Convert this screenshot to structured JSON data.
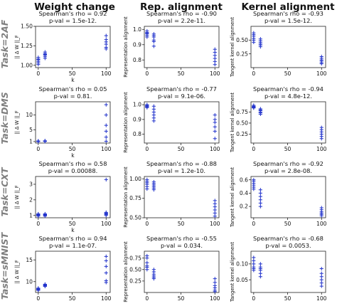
{
  "column_titles": [
    "Weight change",
    "Rep. alignment",
    "Kernel alignment"
  ],
  "row_titles": [
    "Task=2AF",
    "Task=DMS",
    "Task=CXT",
    "Task=sMNIST"
  ],
  "style": {
    "marker_color": "#2233cc",
    "marker": "+"
  },
  "chart_data": [
    {
      "type": "scatter",
      "row": 0,
      "col": 0,
      "stat_lines": [
        "Spearman's rho = 0.92",
        "p-val = 1.5e-12."
      ],
      "xlabel": "k",
      "ylabel": "|| Δ W ||_F",
      "xlim": [
        -4,
        106
      ],
      "ylim": [
        0.97,
        1.5
      ],
      "xticks": [
        0,
        50,
        100
      ],
      "xticklabels": [
        "0",
        "50",
        "100"
      ],
      "yticks": [
        1.0,
        1.25,
        1.5
      ],
      "yticklabels": [
        "1.00",
        "1.25",
        "1.50"
      ],
      "x": [
        0,
        0,
        0,
        0,
        0,
        0,
        10,
        10,
        10,
        10,
        10,
        10,
        100,
        100,
        100,
        100,
        100,
        100
      ],
      "y": [
        1.01,
        1.03,
        1.05,
        1.07,
        1.08,
        1.1,
        1.09,
        1.11,
        1.13,
        1.14,
        1.15,
        1.17,
        1.21,
        1.23,
        1.27,
        1.3,
        1.33,
        1.38
      ]
    },
    {
      "type": "scatter",
      "row": 0,
      "col": 1,
      "stat_lines": [
        "Spearman's rho = -0.90",
        "p-val = 2.2e-11."
      ],
      "xlabel": "",
      "ylabel": "Representation alignment",
      "xlim": [
        -4,
        106
      ],
      "ylim": [
        0.75,
        1.02
      ],
      "xticks": [
        0,
        50,
        100
      ],
      "xticklabels": [
        "0",
        "50",
        "100"
      ],
      "yticks": [
        0.8,
        0.9,
        1.0
      ],
      "yticklabels": [
        "0.8",
        "0.9",
        "1.0"
      ],
      "x": [
        0,
        0,
        0,
        0,
        0,
        0,
        10,
        10,
        10,
        10,
        10,
        10,
        100,
        100,
        100,
        100,
        100,
        100
      ],
      "y": [
        0.99,
        0.98,
        0.975,
        0.97,
        0.96,
        0.95,
        0.97,
        0.96,
        0.95,
        0.93,
        0.92,
        0.89,
        0.87,
        0.85,
        0.83,
        0.81,
        0.79,
        0.77
      ]
    },
    {
      "type": "scatter",
      "row": 0,
      "col": 2,
      "stat_lines": [
        "Spearman's rho = -0.93",
        "p-val = 1.5e-12."
      ],
      "xlabel": "",
      "ylabel": "Tangent kernel alignment",
      "xlim": [
        -4,
        106
      ],
      "ylim": [
        0.0,
        0.75
      ],
      "xticks": [
        0,
        50,
        100
      ],
      "xticklabels": [
        "0",
        "50",
        "100"
      ],
      "yticks": [
        0.25,
        0.5
      ],
      "yticklabels": [
        "0.25",
        "0.50"
      ],
      "x": [
        0,
        0,
        0,
        0,
        0,
        0,
        10,
        10,
        10,
        10,
        10,
        10,
        100,
        100,
        100,
        100,
        100,
        100
      ],
      "y": [
        0.63,
        0.6,
        0.57,
        0.53,
        0.5,
        0.46,
        0.52,
        0.49,
        0.46,
        0.43,
        0.41,
        0.38,
        0.2,
        0.17,
        0.14,
        0.12,
        0.09,
        0.07
      ]
    },
    {
      "type": "scatter",
      "row": 1,
      "col": 0,
      "stat_lines": [
        "Spearman's rho = 0.05",
        "p-val = 0.81."
      ],
      "xlabel": "k",
      "ylabel": "|| Δ W ||_F",
      "xlim": [
        -4,
        106
      ],
      "ylim": [
        0.5,
        14.5
      ],
      "xticks": [
        0,
        50,
        100
      ],
      "xticklabels": [
        "0",
        "50",
        "100"
      ],
      "yticks": [
        1,
        5,
        10
      ],
      "yticklabels": [
        "1",
        "5",
        "10"
      ],
      "x": [
        0,
        0,
        0,
        0,
        0,
        0,
        10,
        10,
        10,
        10,
        10,
        10,
        100,
        100,
        100,
        100,
        100,
        100
      ],
      "y": [
        1.0,
        1.05,
        1.1,
        1.1,
        1.15,
        1.2,
        1.05,
        1.1,
        1.15,
        1.2,
        1.2,
        1.25,
        1.1,
        2.5,
        4.5,
        6.5,
        10.0,
        13.5
      ]
    },
    {
      "type": "scatter",
      "row": 1,
      "col": 1,
      "stat_lines": [
        "Spearman's rho = -0.77",
        "p-val = 9.1e-06."
      ],
      "xlabel": "",
      "ylabel": "Representation alignment",
      "xlim": [
        -4,
        106
      ],
      "ylim": [
        0.74,
        1.02
      ],
      "xticks": [
        0,
        50,
        100
      ],
      "xticklabels": [
        "0",
        "50",
        "100"
      ],
      "yticks": [
        0.8,
        0.9,
        1.0
      ],
      "yticklabels": [
        "0.8",
        "0.9",
        "1.0"
      ],
      "x": [
        0,
        0,
        0,
        0,
        0,
        0,
        10,
        10,
        10,
        10,
        10,
        10,
        100,
        100,
        100,
        100,
        100,
        100
      ],
      "y": [
        1.0,
        0.995,
        0.99,
        0.99,
        0.985,
        0.98,
        0.99,
        0.97,
        0.95,
        0.93,
        0.91,
        0.89,
        0.93,
        0.9,
        0.88,
        0.85,
        0.82,
        0.77
      ]
    },
    {
      "type": "scatter",
      "row": 1,
      "col": 2,
      "stat_lines": [
        "Spearman's rho = -0.94",
        "p-val = 4.8e-12."
      ],
      "xlabel": "",
      "ylabel": "Tangent kernel alignment",
      "xlim": [
        -4,
        106
      ],
      "ylim": [
        0.05,
        0.98
      ],
      "xticks": [
        0,
        50,
        100
      ],
      "xticklabels": [
        "0",
        "50",
        "100"
      ],
      "yticks": [
        0.25,
        0.5,
        0.75
      ],
      "yticklabels": [
        "0.25",
        "0.50",
        "0.75"
      ],
      "x": [
        0,
        0,
        0,
        0,
        0,
        0,
        10,
        10,
        10,
        10,
        10,
        10,
        100,
        100,
        100,
        100,
        100,
        100
      ],
      "y": [
        0.9,
        0.88,
        0.87,
        0.86,
        0.85,
        0.84,
        0.82,
        0.8,
        0.78,
        0.75,
        0.73,
        0.7,
        0.4,
        0.35,
        0.3,
        0.25,
        0.2,
        0.15
      ]
    },
    {
      "type": "scatter",
      "row": 2,
      "col": 0,
      "stat_lines": [
        "Spearman's rho = 0.58",
        "p-val = 0.00088."
      ],
      "xlabel": "k",
      "ylabel": "|| Δ W ||_F",
      "xlim": [
        -4,
        106
      ],
      "ylim": [
        0.85,
        3.5
      ],
      "xticks": [
        0,
        50,
        100
      ],
      "xticklabels": [
        "0",
        "50",
        "100"
      ],
      "yticks": [
        1,
        2,
        3
      ],
      "yticklabels": [
        "1",
        "2",
        "3"
      ],
      "x": [
        0,
        0,
        0,
        0,
        0,
        0,
        10,
        10,
        10,
        10,
        10,
        10,
        100,
        100,
        100,
        100,
        100,
        100
      ],
      "y": [
        0.95,
        1.0,
        1.02,
        1.05,
        1.08,
        1.1,
        0.95,
        1.0,
        1.03,
        1.05,
        1.08,
        1.1,
        1.0,
        1.05,
        1.1,
        1.15,
        1.2,
        3.3
      ]
    },
    {
      "type": "scatter",
      "row": 2,
      "col": 1,
      "stat_lines": [
        "Spearman's rho = -0.88",
        "p-val = 1.2e-10."
      ],
      "xlabel": "",
      "ylabel": "Representation alignment",
      "xlim": [
        -4,
        106
      ],
      "ylim": [
        0.5,
        1.03
      ],
      "xticks": [
        0,
        50,
        100
      ],
      "xticklabels": [
        "0",
        "50",
        "100"
      ],
      "yticks": [
        0.5,
        0.75,
        1.0
      ],
      "yticklabels": [
        "0.50",
        "0.75",
        "1.00"
      ],
      "x": [
        0,
        0,
        0,
        0,
        0,
        0,
        10,
        10,
        10,
        10,
        10,
        10,
        100,
        100,
        100,
        100,
        100,
        100
      ],
      "y": [
        0.99,
        0.97,
        0.95,
        0.93,
        0.9,
        0.87,
        0.96,
        0.94,
        0.92,
        0.9,
        0.88,
        0.86,
        0.72,
        0.68,
        0.64,
        0.6,
        0.56,
        0.52
      ]
    },
    {
      "type": "scatter",
      "row": 2,
      "col": 2,
      "stat_lines": [
        "Spearman's rho = -0.92",
        "p-val = 2.8e-08."
      ],
      "xlabel": "",
      "ylabel": "Tangent kernel alignment",
      "xlim": [
        -4,
        106
      ],
      "ylim": [
        0.03,
        0.65
      ],
      "xticks": [
        0,
        50,
        100
      ],
      "xticklabels": [
        "0",
        "50",
        "100"
      ],
      "yticks": [
        0.2,
        0.4,
        0.6
      ],
      "yticklabels": [
        "0.2",
        "0.4",
        "0.6"
      ],
      "x": [
        0,
        0,
        0,
        0,
        0,
        0,
        10,
        10,
        10,
        10,
        10,
        10,
        100,
        100,
        100,
        100,
        100,
        100
      ],
      "y": [
        0.6,
        0.58,
        0.55,
        0.52,
        0.49,
        0.46,
        0.45,
        0.4,
        0.35,
        0.3,
        0.25,
        0.2,
        0.18,
        0.15,
        0.12,
        0.1,
        0.08,
        0.06
      ]
    },
    {
      "type": "scatter",
      "row": 3,
      "col": 0,
      "stat_lines": [
        "Spearman's rho = 0.94",
        "p-val = 1.1e-07."
      ],
      "xlabel": "k",
      "ylabel": "|| Δ W ||_F",
      "xlim": [
        -4,
        106
      ],
      "ylim": [
        7.5,
        17
      ],
      "xticks": [
        0,
        50,
        100
      ],
      "xticklabels": [
        "0",
        "50",
        "100"
      ],
      "yticks": [
        10,
        15
      ],
      "yticklabels": [
        "10",
        "15"
      ],
      "x": [
        0,
        0,
        0,
        0,
        0,
        0,
        10,
        10,
        10,
        10,
        10,
        10,
        100,
        100,
        100,
        100,
        100,
        100
      ],
      "y": [
        8.0,
        8.1,
        8.2,
        8.3,
        8.4,
        8.5,
        8.9,
        9.0,
        9.1,
        9.2,
        9.3,
        9.4,
        9.8,
        10.2,
        12.0,
        13.5,
        14.8,
        15.8
      ]
    },
    {
      "type": "scatter",
      "row": 3,
      "col": 1,
      "stat_lines": [
        "Spearman's rho = -0.55",
        "p-val = 0.034."
      ],
      "xlabel": "",
      "ylabel": "Representation alignment",
      "xlim": [
        -4,
        106
      ],
      "ylim": [
        0.0,
        0.9
      ],
      "xticks": [
        0,
        50,
        100
      ],
      "xticklabels": [
        "0",
        "50",
        "100"
      ],
      "yticks": [
        0.25,
        0.5,
        0.75
      ],
      "yticklabels": [
        "0.25",
        "0.50",
        "0.75"
      ],
      "x": [
        0,
        0,
        0,
        0,
        0,
        0,
        10,
        10,
        10,
        10,
        10,
        10,
        100,
        100,
        100,
        100,
        100,
        100
      ],
      "y": [
        0.8,
        0.75,
        0.65,
        0.58,
        0.55,
        0.5,
        0.5,
        0.45,
        0.4,
        0.36,
        0.33,
        0.3,
        0.3,
        0.22,
        0.15,
        0.1,
        0.05,
        0.02
      ]
    },
    {
      "type": "scatter",
      "row": 3,
      "col": 2,
      "stat_lines": [
        "Spearman's rho = -0.68",
        "p-val = 0.0053."
      ],
      "xlabel": "",
      "ylabel": "Tangent kernel alignment",
      "xlim": [
        -4,
        106
      ],
      "ylim": [
        0.01,
        0.14
      ],
      "xticks": [
        0,
        50,
        100
      ],
      "xticklabels": [
        "0",
        "50",
        "100"
      ],
      "yticks": [
        0.05,
        0.1
      ],
      "yticklabels": [
        "0.05",
        "0.10"
      ],
      "x": [
        0,
        0,
        0,
        0,
        0,
        0,
        10,
        10,
        10,
        10,
        10,
        10,
        100,
        100,
        100,
        100,
        100,
        100
      ],
      "y": [
        0.12,
        0.11,
        0.1,
        0.09,
        0.085,
        0.08,
        0.1,
        0.09,
        0.085,
        0.08,
        0.07,
        0.06,
        0.085,
        0.07,
        0.06,
        0.05,
        0.04,
        0.03
      ]
    }
  ]
}
